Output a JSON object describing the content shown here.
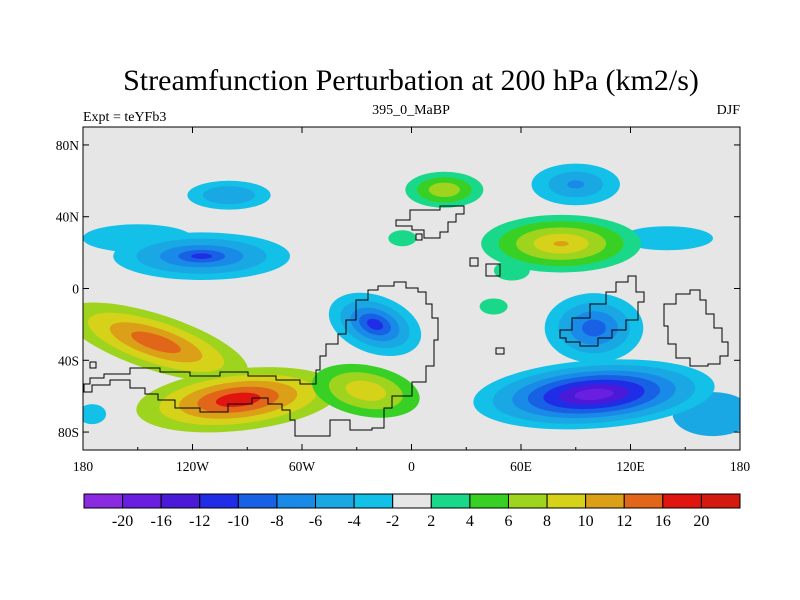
{
  "chart_data": {
    "type": "heatmap",
    "title": "Streamfunction Perturbation at 200 hPa (km2/s)",
    "left_label": "Expt = teYFb3",
    "center_label": "395_0_MaBP",
    "right_label": "DJF",
    "xlim": [
      -180,
      180
    ],
    "ylim": [
      -90,
      90
    ],
    "x_ticks": [
      {
        "value": -180,
        "label": "180"
      },
      {
        "value": -120,
        "label": "120W"
      },
      {
        "value": -60,
        "label": "60W"
      },
      {
        "value": 0,
        "label": "0"
      },
      {
        "value": 60,
        "label": "60E"
      },
      {
        "value": 120,
        "label": "120E"
      },
      {
        "value": 180,
        "label": "180"
      }
    ],
    "y_ticks": [
      {
        "value": 80,
        "label": "80N"
      },
      {
        "value": 40,
        "label": "40N"
      },
      {
        "value": 0,
        "label": "0"
      },
      {
        "value": -40,
        "label": "40S"
      },
      {
        "value": -80,
        "label": "80S"
      }
    ],
    "colorbar": {
      "levels": [
        "-20",
        "-16",
        "-12",
        "-10",
        "-8",
        "-6",
        "-4",
        "-2",
        "2",
        "4",
        "6",
        "8",
        "10",
        "12",
        "16",
        "20"
      ],
      "colors": [
        "#8a2be2",
        "#6a1ee0",
        "#4a1ad8",
        "#1f2ee6",
        "#1860e4",
        "#1a8ae8",
        "#19a8e4",
        "#12c0e8",
        "#e6e6e6",
        "#19d889",
        "#39d025",
        "#9ed41e",
        "#d6d21a",
        "#dca018",
        "#e2661a",
        "#e01510",
        "#d41a10"
      ]
    },
    "fields": [
      {
        "name": "pacific-sh-positive",
        "lon": -140,
        "lat": -30,
        "peak": 12
      },
      {
        "name": "south-pacific-positive",
        "lon": -95,
        "lat": -62,
        "peak": 16
      },
      {
        "name": "atlantic-sh-positive",
        "lon": -25,
        "lat": -57,
        "peak": 8
      },
      {
        "name": "north-pacific-negative",
        "lon": -115,
        "lat": 18,
        "peak": -10
      },
      {
        "name": "north-pacific-high-lat-negative",
        "lon": -100,
        "lat": 52,
        "peak": -4
      },
      {
        "name": "north-atlantic-negative",
        "lon": -20,
        "lat": -20,
        "peak": -10
      },
      {
        "name": "indian-ocean-negative",
        "lon": 100,
        "lat": -22,
        "peak": -8
      },
      {
        "name": "southern-indian-negative",
        "lon": 100,
        "lat": -59,
        "peak": -16
      },
      {
        "name": "asia-positive",
        "lon": 82,
        "lat": 25,
        "peak": 10
      },
      {
        "name": "arctic-europe-positive",
        "lon": 18,
        "lat": 55,
        "peak": 6
      },
      {
        "name": "north-asia-negative",
        "lon": 90,
        "lat": 58,
        "peak": -6
      }
    ]
  }
}
